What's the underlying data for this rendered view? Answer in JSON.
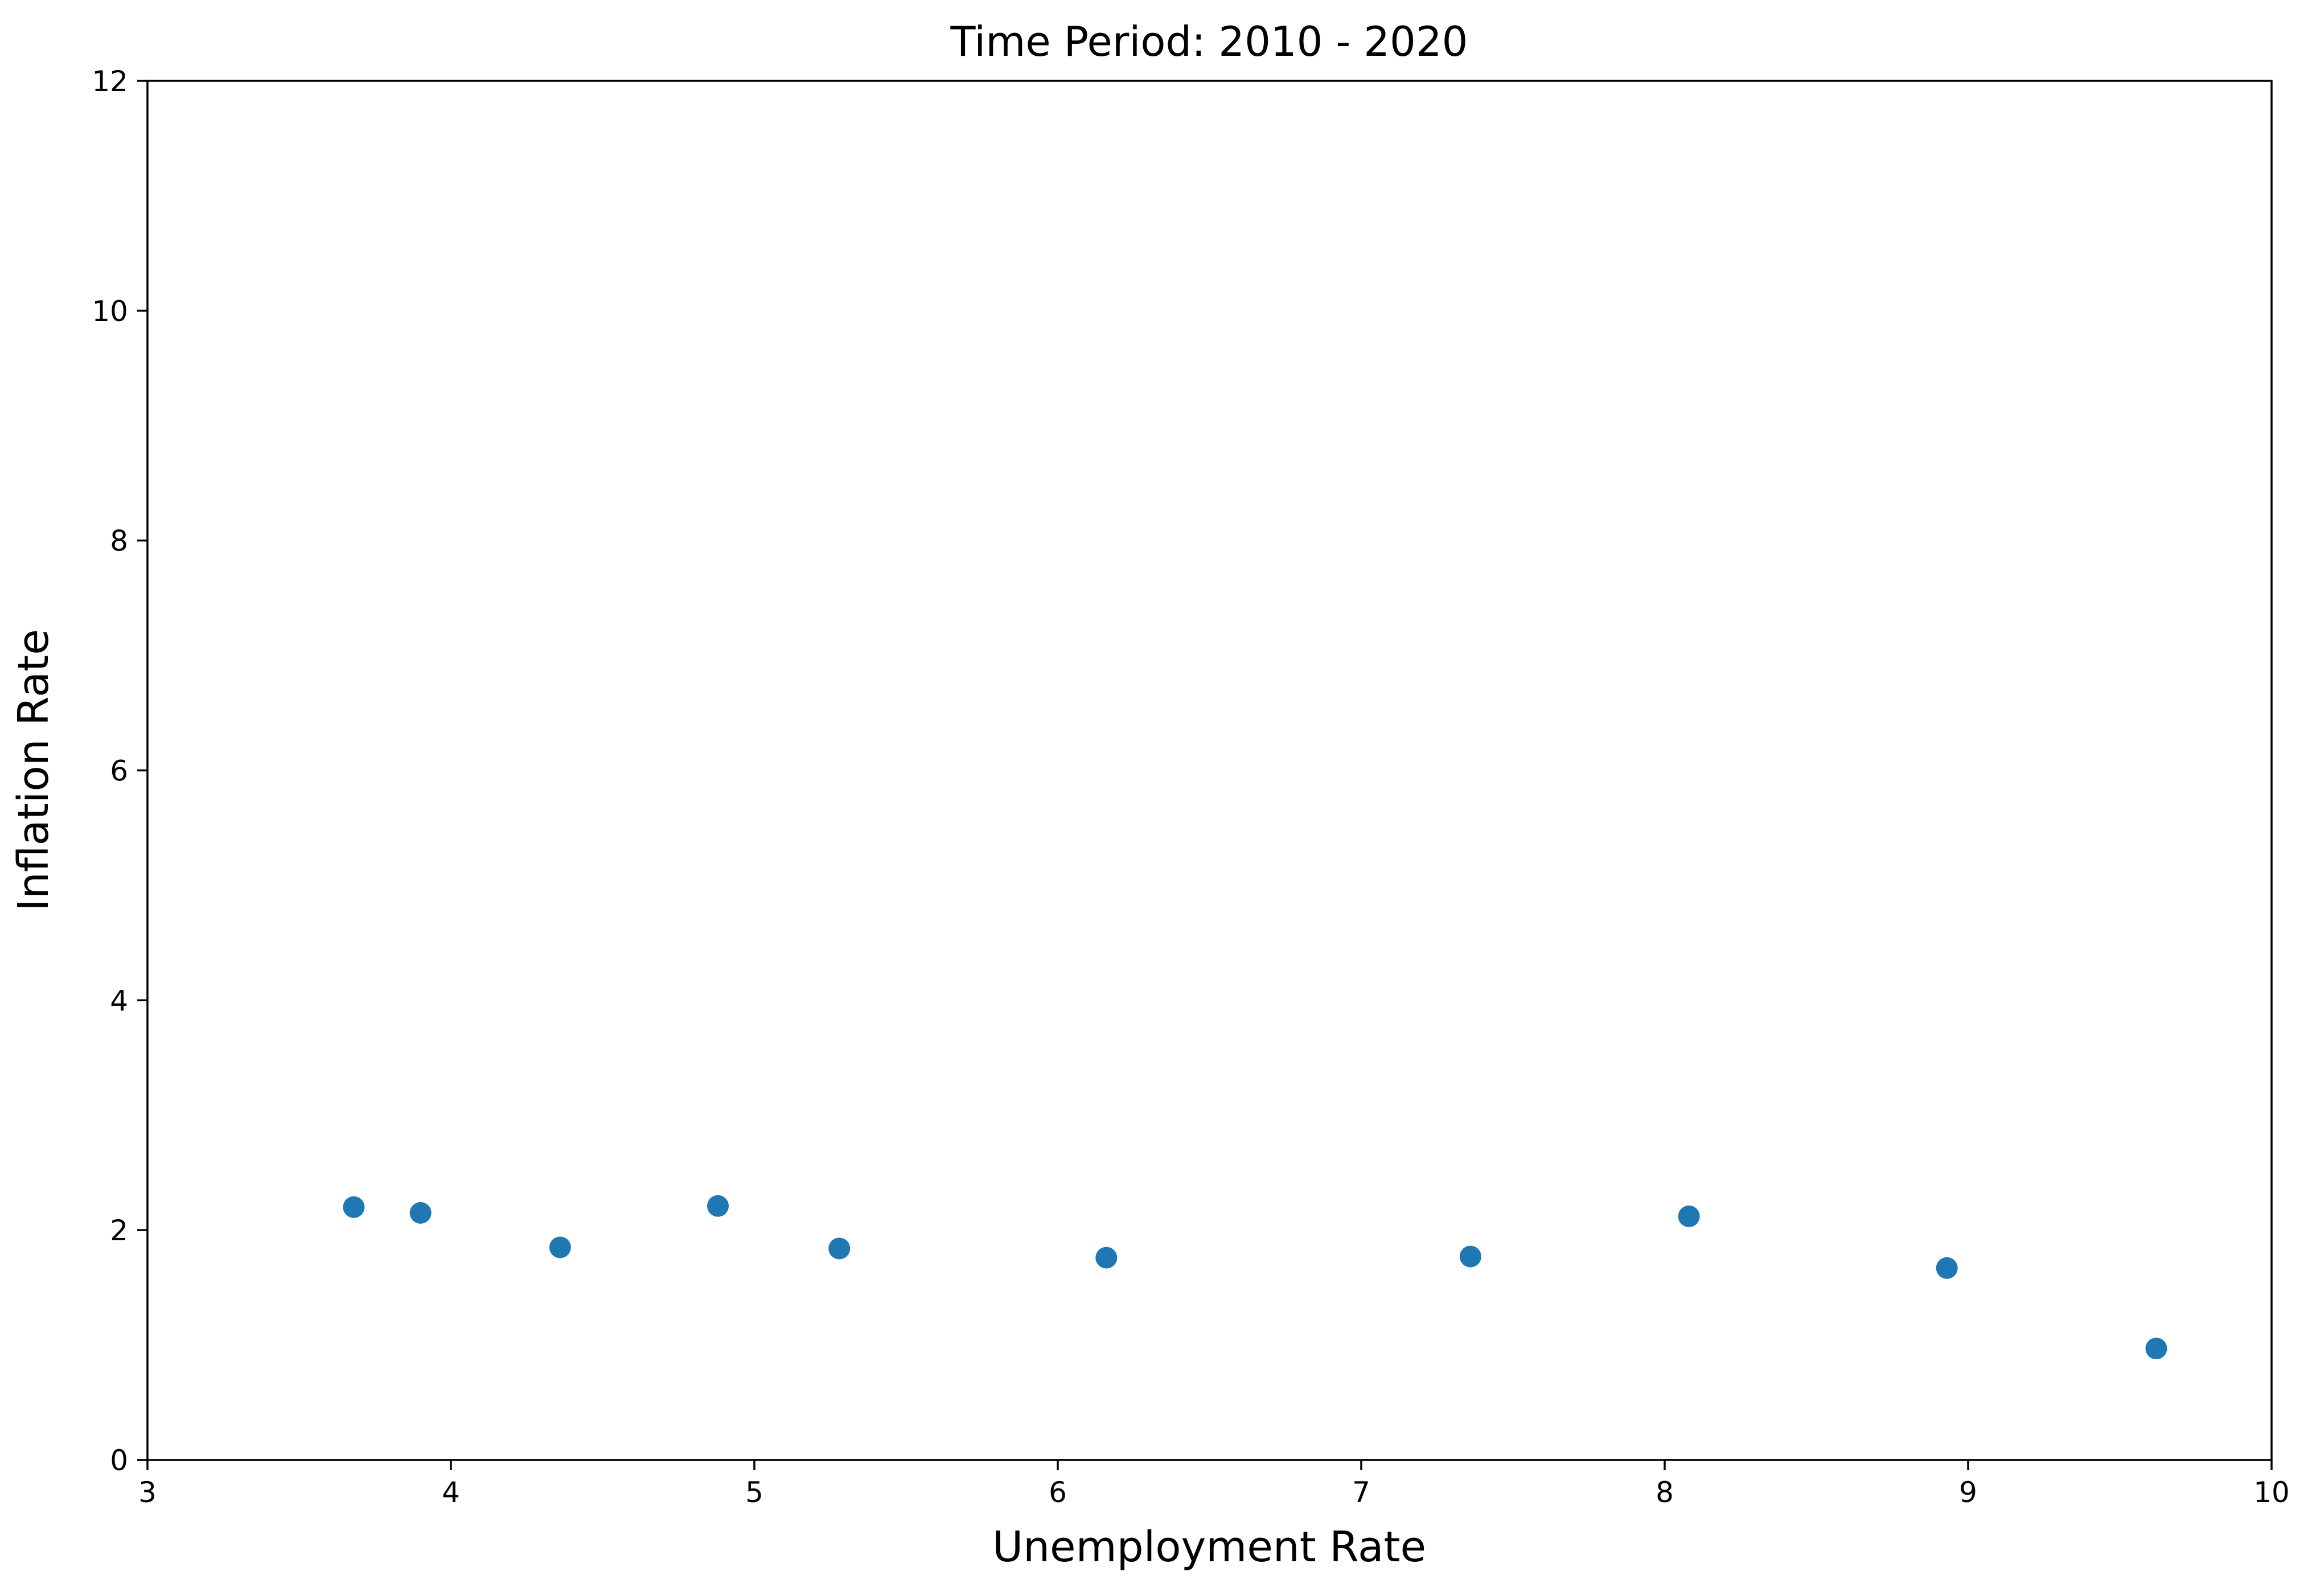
{
  "chart_data": {
    "type": "scatter",
    "title": "Time Period: 2010 - 2020",
    "xlabel": "Unemployment Rate",
    "ylabel": "Inflation Rate",
    "xlim": [
      3,
      10
    ],
    "ylim": [
      0,
      12
    ],
    "xticks": [
      "3",
      "4",
      "5",
      "6",
      "7",
      "8",
      "9",
      "10"
    ],
    "yticks": [
      "0",
      "2",
      "4",
      "6",
      "8",
      "10",
      "12"
    ],
    "grid": false,
    "legend": "none",
    "marker_color": "#1f77b4",
    "points": [
      {
        "x": 3.68,
        "y": 2.2
      },
      {
        "x": 3.9,
        "y": 2.15
      },
      {
        "x": 4.36,
        "y": 1.85
      },
      {
        "x": 4.88,
        "y": 2.21
      },
      {
        "x": 5.28,
        "y": 1.84
      },
      {
        "x": 6.16,
        "y": 1.76
      },
      {
        "x": 7.36,
        "y": 1.77
      },
      {
        "x": 8.08,
        "y": 2.12
      },
      {
        "x": 8.93,
        "y": 1.67
      },
      {
        "x": 9.62,
        "y": 0.97
      }
    ]
  }
}
